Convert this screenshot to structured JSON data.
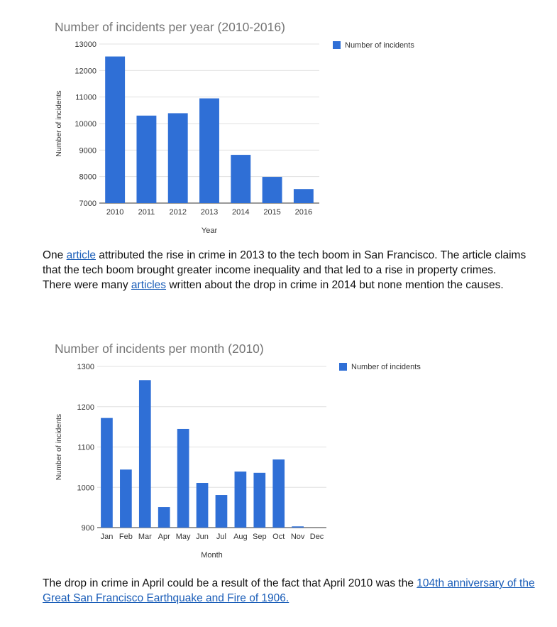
{
  "chart_data": [
    {
      "type": "bar",
      "title": "Number of incidents per year (2010-2016)",
      "xlabel": "Year",
      "ylabel": "Number of incidents",
      "categories": [
        "2010",
        "2011",
        "2012",
        "2013",
        "2014",
        "2015",
        "2016"
      ],
      "series": [
        {
          "name": "Number of incidents",
          "values": [
            12530,
            10300,
            10390,
            10950,
            8820,
            7990,
            7530
          ],
          "color": "#2f6fd6"
        }
      ],
      "ylim": [
        7000,
        13000
      ],
      "yticks": [
        7000,
        8000,
        9000,
        10000,
        11000,
        12000,
        13000
      ],
      "grid": true,
      "legend": "right"
    },
    {
      "type": "bar",
      "title": "Number of incidents per month (2010)",
      "xlabel": "Month",
      "ylabel": "Number of incidents",
      "categories": [
        "Jan",
        "Feb",
        "Mar",
        "Apr",
        "May",
        "Jun",
        "Jul",
        "Aug",
        "Sep",
        "Oct",
        "Nov",
        "Dec"
      ],
      "series": [
        {
          "name": "Number of incidents",
          "values": [
            1172,
            1044,
            1266,
            951,
            1145,
            1011,
            981,
            1039,
            1036,
            1069,
            903,
            900
          ],
          "color": "#2f6fd6"
        }
      ],
      "ylim": [
        900,
        1300
      ],
      "yticks": [
        900,
        1000,
        1100,
        1200,
        1300
      ],
      "grid": true,
      "legend": "right"
    }
  ],
  "text1": {
    "line1_pre": "One",
    "link1": "article",
    "line1_post": " attributed the rise in crime in 2013 to the tech boom in San Francisco. The article claims that the tech boom brought greater income inequality and that led to a rise in property crimes.",
    "line2_pre": "There were many ",
    "link2": "articles",
    "line2_post": " written about the drop in crime in 2014 but none mention the causes."
  },
  "text2": {
    "pre": "The drop in crime in April could be a result of the fact that April 2010 was the ",
    "link": "104th anniversary of the Great San Francisco Earthquake and Fire of 1906."
  }
}
